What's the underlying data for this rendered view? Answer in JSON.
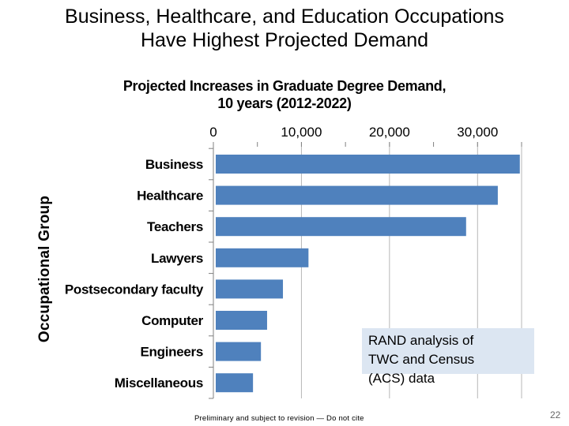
{
  "slide": {
    "title_line1": "Business, Healthcare, and Education Occupations",
    "title_line2": "Have Highest Projected Demand",
    "note_line1": "RAND analysis of",
    "note_line2": "TWC and Census",
    "note_line3": "(ACS) data",
    "footer": "Preliminary and subject to revision — Do not cite",
    "page_number": "22"
  },
  "chart_data": {
    "type": "bar",
    "orientation": "horizontal",
    "title_line1": "Projected Increases in Graduate Degree Demand,",
    "title_line2": "10 years (2012-2022)",
    "ylabel": "Occupational Group",
    "xlabel": "",
    "x_ticks": [
      "0",
      "10,000",
      "20,000",
      "30,000"
    ],
    "x_tick_values": [
      0,
      10000,
      20000,
      30000
    ],
    "xlim": [
      0,
      35000
    ],
    "x_axis_position": "top",
    "grid": true,
    "categories": [
      "Business",
      "Healthcare",
      "Teachers",
      "Lawyers",
      "Postsecondary faculty",
      "Computer",
      "Engineers",
      "Miscellaneous"
    ],
    "values": [
      34800,
      32300,
      28700,
      10800,
      7900,
      6100,
      5400,
      4500
    ],
    "bar_color": "#4f81bd"
  }
}
